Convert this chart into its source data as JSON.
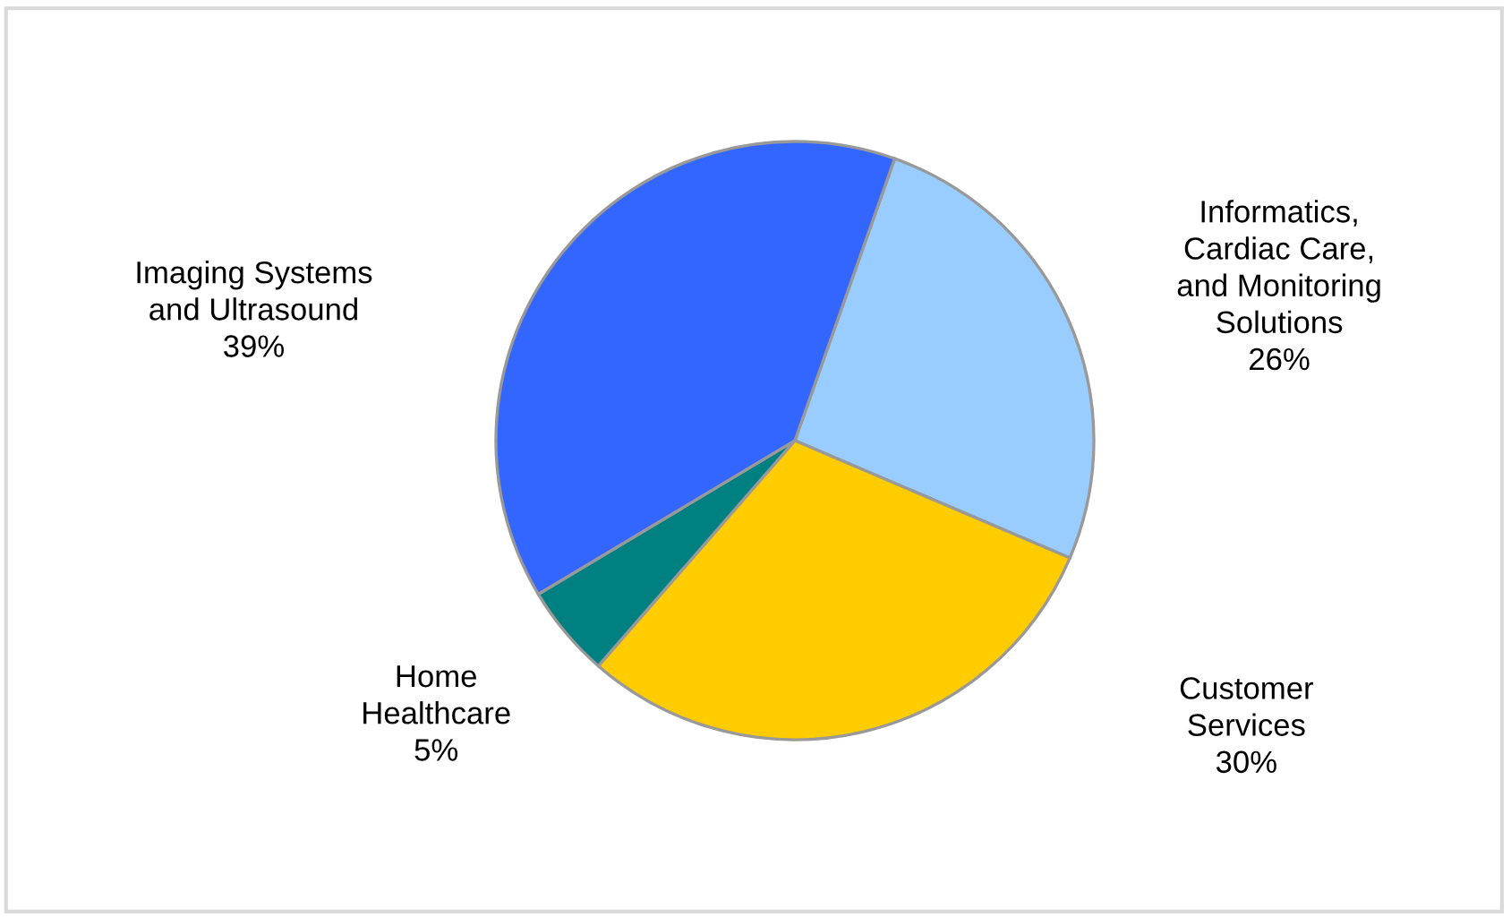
{
  "chart_data": {
    "type": "pie",
    "categories": [
      "Informatics,\nCardiac Care,\nand Monitoring\nSolutions",
      "Customer\nServices",
      "Home\nHealthcare",
      "Imaging Systems\nand Ultrasound"
    ],
    "values": [
      26,
      30,
      5,
      39
    ],
    "colors": [
      "#99ccff",
      "#ffcc00",
      "#008080",
      "#3366ff"
    ],
    "value_labels": [
      "26%",
      "30%",
      "5%",
      "39%"
    ]
  }
}
